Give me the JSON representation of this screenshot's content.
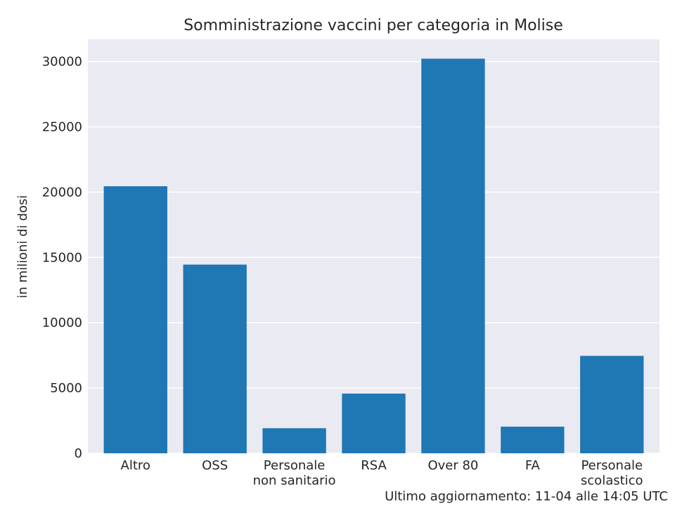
{
  "chart_data": {
    "type": "bar",
    "title": "Somministrazione vaccini per categoria in Molise",
    "xlabel": "",
    "ylabel": "in milioni di dosi",
    "categories": [
      [
        "Altro"
      ],
      [
        "OSS"
      ],
      [
        "Personale",
        "non sanitario"
      ],
      [
        "RSA"
      ],
      [
        "Over 80"
      ],
      [
        "FA"
      ],
      [
        "Personale",
        "scolastico"
      ]
    ],
    "values": [
      20450,
      14450,
      1920,
      4570,
      30220,
      2040,
      7460
    ],
    "yticks": [
      0,
      5000,
      10000,
      15000,
      20000,
      25000,
      30000
    ],
    "ylim": [
      0,
      31700
    ],
    "bar_color": "#1f77b4",
    "background_color": "#eaeaf2",
    "grid": true
  },
  "footer": "Ultimo aggiornamento: 11-04 alle 14:05 UTC"
}
